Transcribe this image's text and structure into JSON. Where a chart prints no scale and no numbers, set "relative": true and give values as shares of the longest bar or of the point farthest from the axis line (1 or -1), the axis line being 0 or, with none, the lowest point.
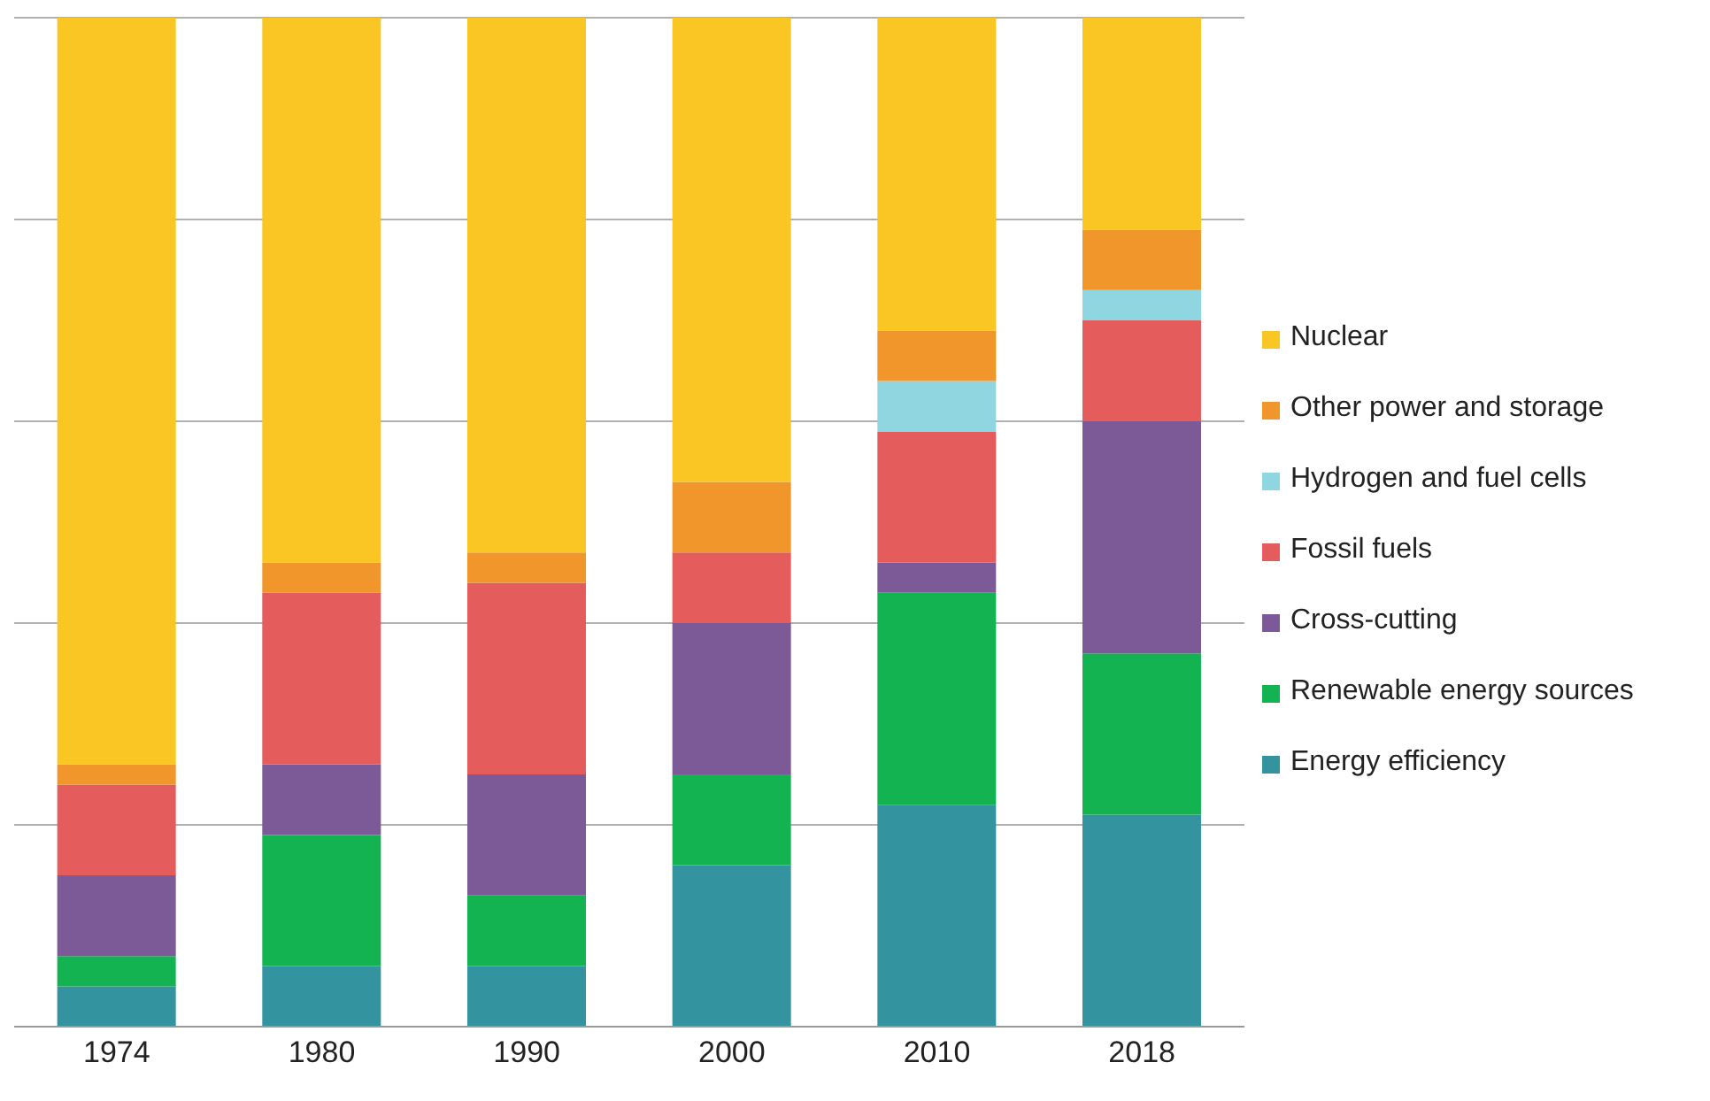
{
  "chart_data": {
    "type": "bar",
    "stacked": true,
    "relative": true,
    "grid": "y",
    "legend": "right",
    "categories": [
      "1974",
      "1980",
      "1990",
      "2000",
      "2010",
      "2018"
    ],
    "series": [
      {
        "name": "Energy efficiency",
        "color": "#33949f",
        "values": [
          0.04,
          0.06,
          0.06,
          0.16,
          0.22,
          0.21
        ]
      },
      {
        "name": "Renewable energy sources",
        "color": "#14b352",
        "values": [
          0.03,
          0.13,
          0.07,
          0.09,
          0.21,
          0.16
        ]
      },
      {
        "name": "Cross-cutting",
        "color": "#7b5a97",
        "values": [
          0.08,
          0.07,
          0.12,
          0.15,
          0.03,
          0.23
        ]
      },
      {
        "name": "Fossil fuels",
        "color": "#e45c5c",
        "values": [
          0.09,
          0.17,
          0.19,
          0.07,
          0.13,
          0.1
        ]
      },
      {
        "name": "Hydrogen and fuel cells",
        "color": "#8fd6e1",
        "values": [
          null,
          null,
          null,
          null,
          0.05,
          0.03
        ]
      },
      {
        "name": "Other power and storage",
        "color": "#f0962b",
        "values": [
          0.02,
          0.03,
          0.03,
          0.07,
          0.05,
          0.06
        ]
      },
      {
        "name": "Nuclear",
        "color": "#f9c623",
        "values": [
          0.74,
          0.54,
          0.53,
          0.46,
          0.31,
          0.21
        ]
      }
    ]
  }
}
